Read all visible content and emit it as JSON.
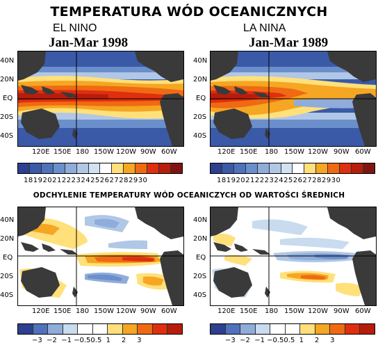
{
  "title": "TEMPERATURA WÓD OCEANICZNYCH",
  "subtitle": "ODCHYLENIE TEMPERATURY WÓD OCEANICZYCH OD WARTOŚCI ŚREDNICH",
  "el_nino": {
    "name": "EL NINO",
    "period": "Jan-Mar 1998"
  },
  "la_nina": {
    "name": "LA NINA",
    "period": "Jan-Mar 1989"
  },
  "latitude_labels_top": [
    "40N",
    "20N",
    "EQ",
    "20S",
    "40S"
  ],
  "latitude_labels_bottom": [
    "40N",
    "20N",
    "EQ",
    "20S",
    "40S"
  ],
  "longitude_labels": [
    "120E",
    "150E",
    "180",
    "150W",
    "120W",
    "90W",
    "60W"
  ],
  "temperature_scale": {
    "labels": "18192021222324252627282930",
    "colors": [
      "#2d3f8f",
      "#3a5aa8",
      "#4e72bb",
      "#6b8fcb",
      "#8facdb",
      "#b0c7e6",
      "#d2e2f2",
      "#ffffff",
      "#ffe07a",
      "#f5a623",
      "#ef6a13",
      "#de2f0f",
      "#b71d0c",
      "#7f1510"
    ]
  },
  "anomaly_scale": {
    "labels": "−3  −2  −1 −0.50.5  1     2     3",
    "colors": [
      "#2d3f8f",
      "#4e72bb",
      "#8facdb",
      "#c8dbef",
      "#ffffff",
      "#ffffff",
      "#ffe07a",
      "#f5a623",
      "#ef6a13",
      "#de2f0f",
      "#b71d0c"
    ]
  },
  "colors": {
    "land": "#3a3a3a",
    "background": "#ffffff"
  }
}
